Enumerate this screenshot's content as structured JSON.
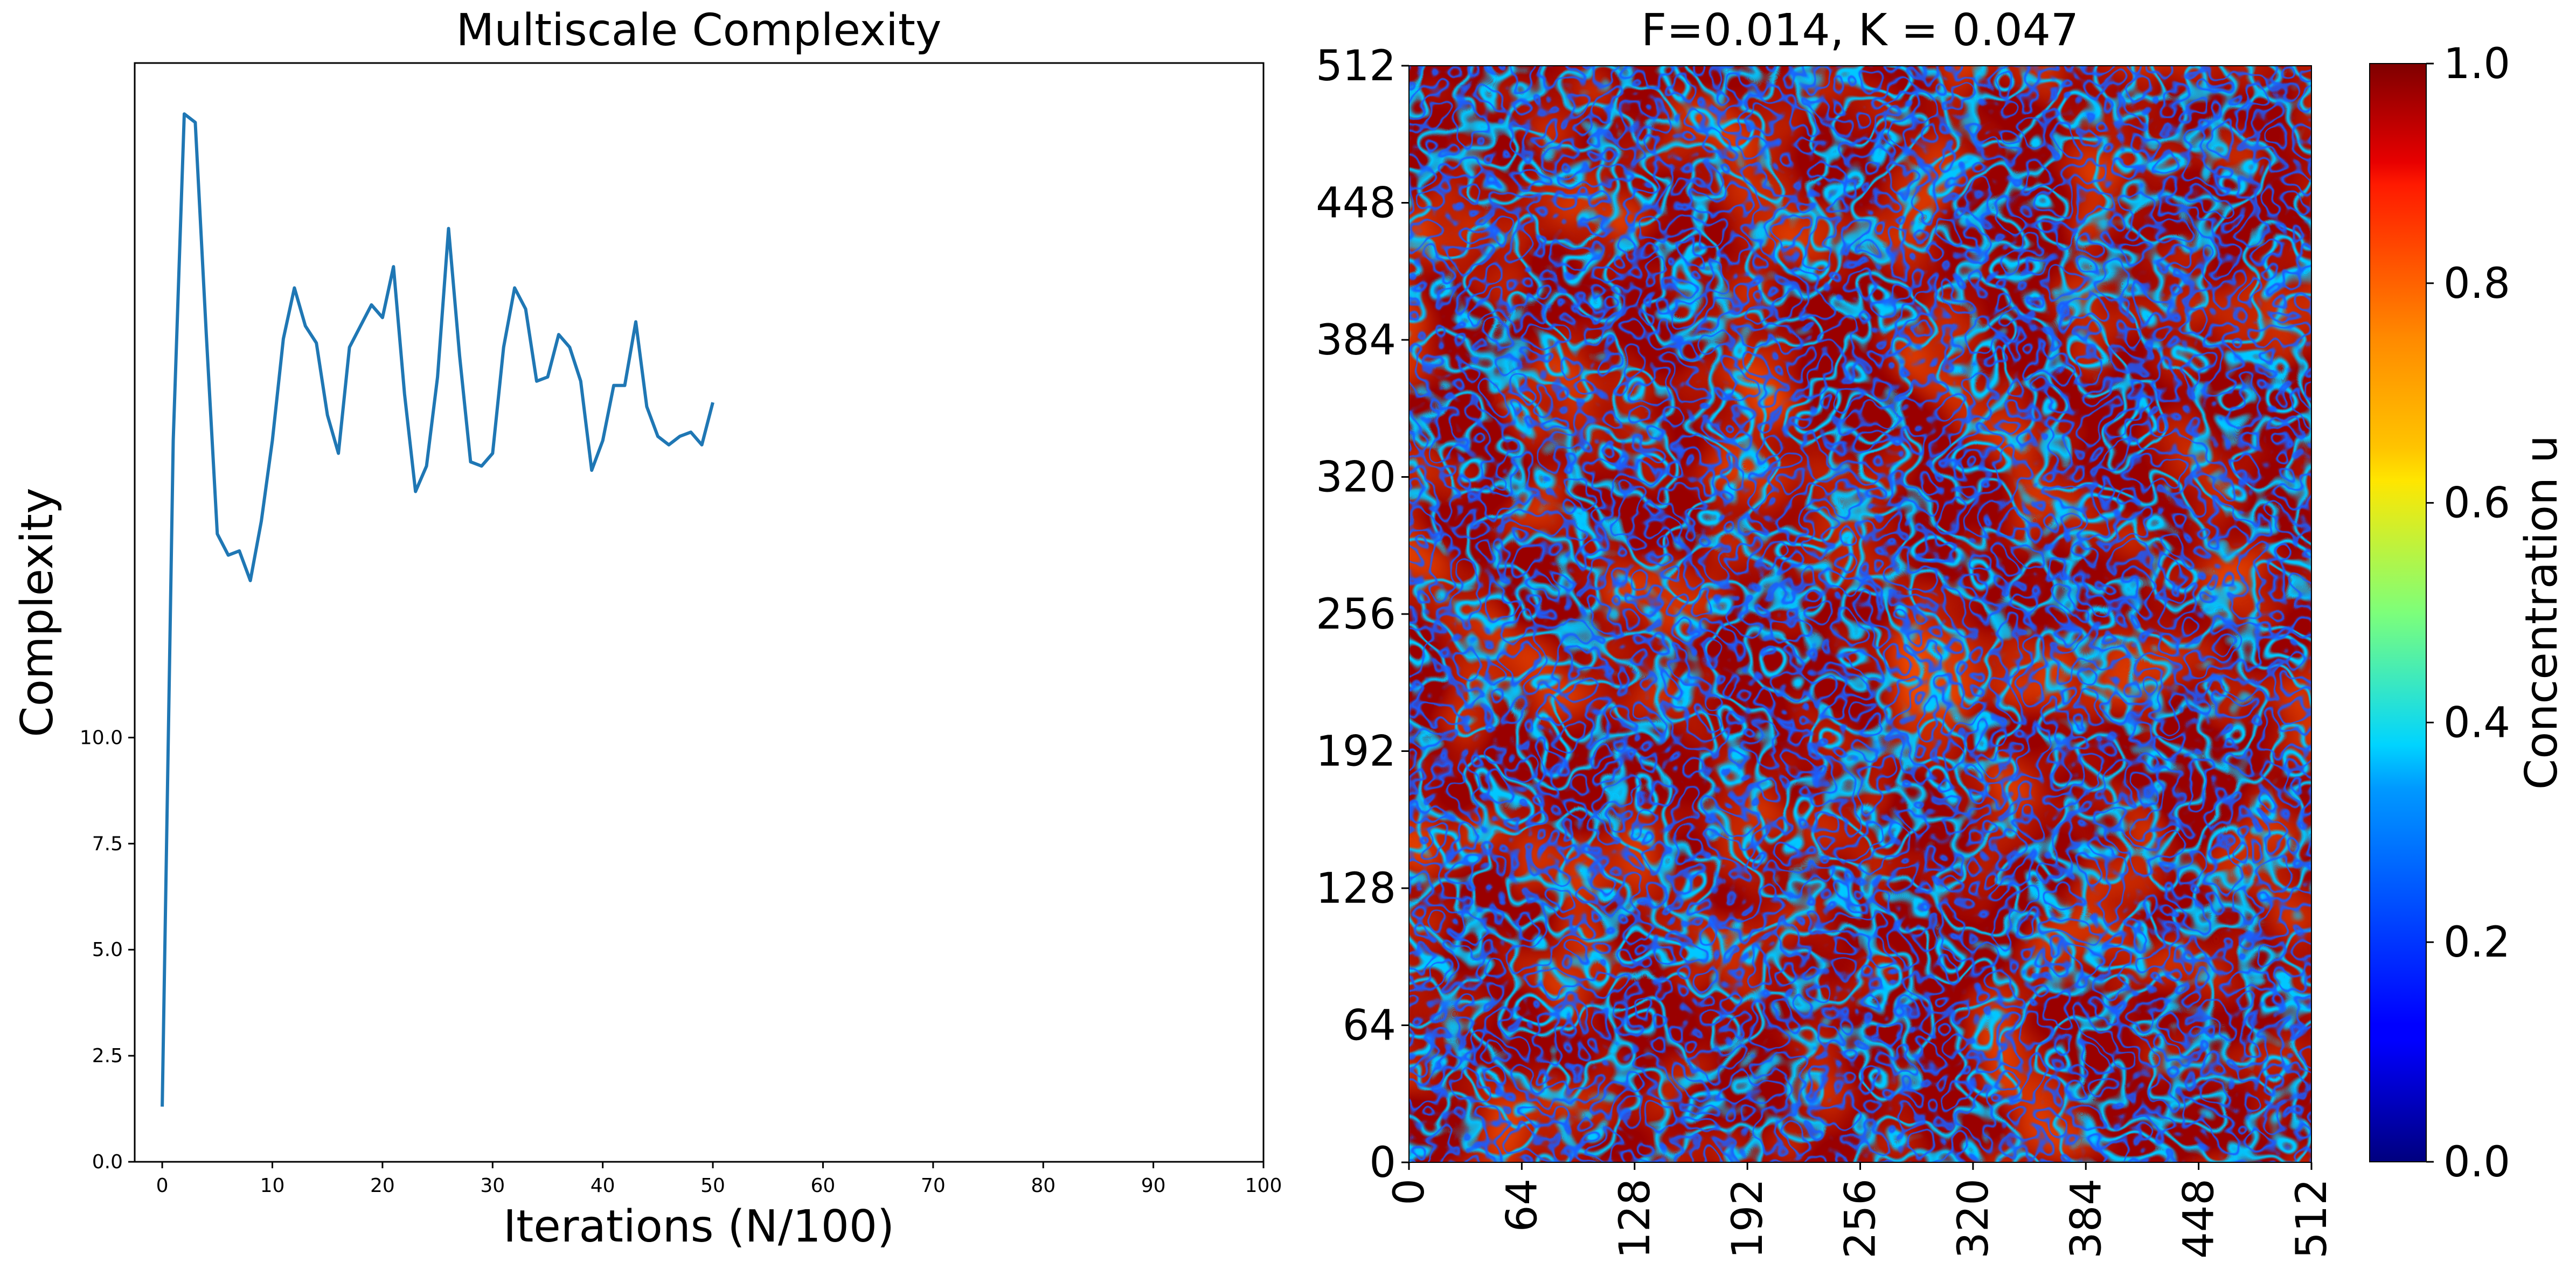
{
  "chart_data": [
    {
      "type": "line",
      "title": "Multiscale Complexity",
      "xlabel": "Iterations (N/100)",
      "ylabel": "Complexity",
      "xlim": [
        -2.5,
        100
      ],
      "ylim": [
        0,
        25.9
      ],
      "grid": false,
      "xticks": [
        "0",
        "10",
        "20",
        "30",
        "40",
        "50",
        "60",
        "70",
        "80",
        "90",
        "100"
      ],
      "yticks": [
        "0.0",
        "2.5",
        "5.0",
        "7.5",
        "10.0"
      ],
      "colors": {
        "line": "#1f77b4"
      },
      "series": [
        {
          "x": [
            0,
            1,
            2,
            3,
            4,
            5,
            6,
            7,
            8,
            9,
            10,
            11,
            12,
            13,
            14,
            15,
            16,
            17,
            18,
            19,
            20,
            21,
            22,
            23,
            24,
            25,
            26,
            27,
            28,
            29,
            30,
            31,
            32,
            33,
            34,
            35,
            36,
            37,
            38,
            39,
            40,
            41,
            42,
            43,
            44,
            45,
            46,
            47,
            48,
            49,
            50
          ],
          "y": [
            1.3,
            17.0,
            24.7,
            24.5,
            19.5,
            14.8,
            14.3,
            14.4,
            13.7,
            15.1,
            17.0,
            19.4,
            20.6,
            19.7,
            19.3,
            17.6,
            16.7,
            19.2,
            19.7,
            20.2,
            19.9,
            21.1,
            18.1,
            15.8,
            16.4,
            18.5,
            22.0,
            19.0,
            16.5,
            16.4,
            16.7,
            19.2,
            20.6,
            20.1,
            18.4,
            18.5,
            19.5,
            19.2,
            18.4,
            16.3,
            17.0,
            18.3,
            18.3,
            19.8,
            17.8,
            17.1,
            16.9,
            17.1,
            17.2,
            16.9,
            17.9
          ]
        }
      ]
    },
    {
      "type": "heatmap",
      "title": "F=0.014, K = 0.047",
      "xlim": [
        0,
        512
      ],
      "ylim": [
        0,
        512
      ],
      "xticks": [
        "0",
        "64",
        "128",
        "192",
        "256",
        "320",
        "384",
        "448",
        "512"
      ],
      "yticks": [
        "0",
        "64",
        "128",
        "192",
        "256",
        "320",
        "384",
        "448",
        "512"
      ],
      "colormap": "jet",
      "colorbar": {
        "label": "Concentration u",
        "range": [
          0.0,
          1.0
        ],
        "ticks": [
          "0.0",
          "0.2",
          "0.4",
          "0.6",
          "0.8",
          "1.0"
        ]
      }
    }
  ]
}
